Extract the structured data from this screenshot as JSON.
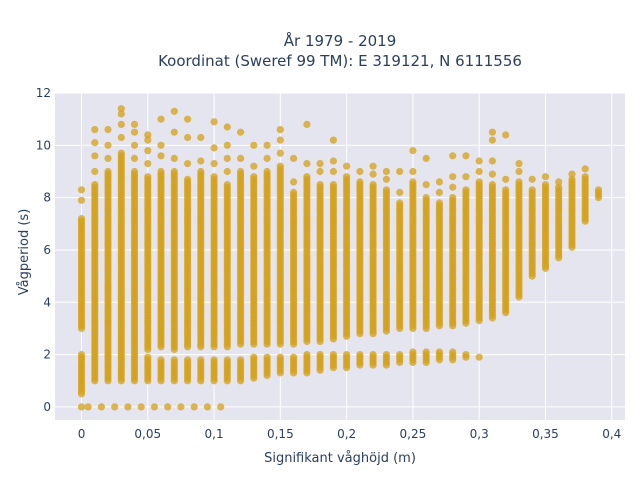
{
  "chart_data": {
    "type": "scatter",
    "title_line1": "År 1979 - 2019",
    "title_line2": "Koordinat (Sweref 99 TM): E 319121, N 6111556",
    "xlabel": "Signifikant våghöjd (m)",
    "ylabel": "Vågperiod (s)",
    "xlim": [
      -0.02,
      0.41
    ],
    "ylim": [
      -0.5,
      12
    ],
    "xticks": [
      0,
      0.05,
      0.1,
      0.15,
      0.2,
      0.25,
      0.3,
      0.35,
      0.4
    ],
    "xtick_labels": [
      "0",
      "0,05",
      "0,1",
      "0,15",
      "0,2",
      "0,25",
      "0,3",
      "0,35",
      "0,4"
    ],
    "yticks": [
      0,
      2,
      4,
      6,
      8,
      10,
      12
    ],
    "ytick_labels": [
      "0",
      "2",
      "4",
      "6",
      "8",
      "10",
      "12"
    ],
    "marker_color": "#D4A017",
    "plot_background": "#E5E5EF",
    "grid": true,
    "legend": false,
    "columns": [
      {
        "x": 0.0,
        "segments": [
          [
            0,
            0
          ],
          [
            0.5,
            2.0
          ],
          [
            3.0,
            7.2
          ]
        ],
        "outliers": [
          7.9,
          8.3
        ]
      },
      {
        "x": 0.005,
        "segments": [
          [
            0,
            0
          ]
        ]
      },
      {
        "x": 0.01,
        "segments": [
          [
            1.0,
            8.5
          ]
        ],
        "outliers": [
          9.0,
          9.6,
          10.1,
          10.6
        ]
      },
      {
        "x": 0.015,
        "segments": [
          [
            0,
            0
          ]
        ]
      },
      {
        "x": 0.02,
        "segments": [
          [
            1.0,
            9.0
          ]
        ],
        "outliers": [
          9.5,
          10.0,
          10.6
        ]
      },
      {
        "x": 0.025,
        "segments": [
          [
            0,
            0
          ]
        ]
      },
      {
        "x": 0.03,
        "segments": [
          [
            1.0,
            9.7
          ]
        ],
        "outliers": [
          10.3,
          10.8,
          11.2,
          11.4
        ]
      },
      {
        "x": 0.035,
        "segments": [
          [
            0,
            0
          ]
        ]
      },
      {
        "x": 0.04,
        "segments": [
          [
            1.0,
            9.0
          ]
        ],
        "outliers": [
          9.5,
          10.0,
          10.5,
          10.8
        ]
      },
      {
        "x": 0.045,
        "segments": [
          [
            0,
            0
          ]
        ]
      },
      {
        "x": 0.05,
        "segments": [
          [
            1.0,
            1.9
          ],
          [
            2.2,
            8.8
          ]
        ],
        "outliers": [
          9.3,
          9.8,
          10.2,
          10.4
        ]
      },
      {
        "x": 0.055,
        "segments": [
          [
            0,
            0
          ]
        ]
      },
      {
        "x": 0.06,
        "segments": [
          [
            1.0,
            1.8
          ],
          [
            2.3,
            9.0
          ]
        ],
        "outliers": [
          9.6,
          10.0,
          11.0
        ]
      },
      {
        "x": 0.065,
        "segments": [
          [
            0,
            0
          ]
        ]
      },
      {
        "x": 0.07,
        "segments": [
          [
            1.0,
            1.8
          ],
          [
            2.2,
            9.0
          ]
        ],
        "outliers": [
          9.5,
          10.5,
          11.3
        ]
      },
      {
        "x": 0.075,
        "segments": [
          [
            0,
            0
          ]
        ]
      },
      {
        "x": 0.08,
        "segments": [
          [
            1.0,
            1.8
          ],
          [
            2.3,
            8.7
          ]
        ],
        "outliers": [
          9.3,
          10.3,
          11.0
        ]
      },
      {
        "x": 0.085,
        "segments": [
          [
            0,
            0
          ]
        ]
      },
      {
        "x": 0.09,
        "segments": [
          [
            1.0,
            1.8
          ],
          [
            2.3,
            9.0
          ]
        ],
        "outliers": [
          9.4,
          10.3
        ]
      },
      {
        "x": 0.095,
        "segments": [
          [
            0,
            0
          ]
        ]
      },
      {
        "x": 0.1,
        "segments": [
          [
            1.0,
            1.8
          ],
          [
            2.3,
            8.8
          ]
        ],
        "outliers": [
          9.3,
          9.9,
          10.9
        ]
      },
      {
        "x": 0.105,
        "segments": [
          [
            0,
            0
          ]
        ]
      },
      {
        "x": 0.11,
        "segments": [
          [
            1.0,
            1.8
          ],
          [
            2.3,
            8.5
          ]
        ],
        "outliers": [
          9.0,
          9.5,
          10.0,
          10.7
        ]
      },
      {
        "x": 0.12,
        "segments": [
          [
            1.0,
            1.8
          ],
          [
            2.4,
            9.0
          ]
        ],
        "outliers": [
          9.5,
          10.5
        ]
      },
      {
        "x": 0.13,
        "segments": [
          [
            1.1,
            1.9
          ],
          [
            2.4,
            8.8
          ]
        ],
        "outliers": [
          9.2,
          10.0
        ]
      },
      {
        "x": 0.14,
        "segments": [
          [
            1.2,
            1.9
          ],
          [
            2.4,
            9.0
          ]
        ],
        "outliers": [
          9.5,
          10.0
        ]
      },
      {
        "x": 0.15,
        "segments": [
          [
            1.3,
            1.9
          ],
          [
            2.4,
            9.2
          ]
        ],
        "outliers": [
          9.7,
          10.2,
          10.6
        ]
      },
      {
        "x": 0.16,
        "segments": [
          [
            1.3,
            1.9
          ],
          [
            2.4,
            8.2
          ]
        ],
        "outliers": [
          8.6,
          9.5
        ]
      },
      {
        "x": 0.17,
        "segments": [
          [
            1.3,
            2.0
          ],
          [
            2.5,
            8.8
          ]
        ],
        "outliers": [
          9.3,
          10.8
        ]
      },
      {
        "x": 0.18,
        "segments": [
          [
            1.4,
            2.0
          ],
          [
            2.5,
            8.5
          ]
        ],
        "outliers": [
          9.0,
          9.3
        ]
      },
      {
        "x": 0.19,
        "segments": [
          [
            1.5,
            2.0
          ],
          [
            2.6,
            8.5
          ]
        ],
        "outliers": [
          9.0,
          9.4,
          10.2
        ]
      },
      {
        "x": 0.2,
        "segments": [
          [
            1.5,
            2.0
          ],
          [
            2.7,
            8.8
          ]
        ],
        "outliers": [
          9.2
        ]
      },
      {
        "x": 0.21,
        "segments": [
          [
            1.6,
            2.0
          ],
          [
            2.8,
            8.6
          ]
        ],
        "outliers": [
          9.0
        ]
      },
      {
        "x": 0.22,
        "segments": [
          [
            1.6,
            2.0
          ],
          [
            2.8,
            8.5
          ]
        ],
        "outliers": [
          8.9,
          9.2
        ]
      },
      {
        "x": 0.23,
        "segments": [
          [
            1.6,
            2.0
          ],
          [
            2.9,
            8.3
          ]
        ],
        "outliers": [
          8.7,
          9.0
        ]
      },
      {
        "x": 0.24,
        "segments": [
          [
            1.7,
            2.0
          ],
          [
            3.0,
            7.8
          ]
        ],
        "outliers": [
          8.2,
          9.0
        ]
      },
      {
        "x": 0.25,
        "segments": [
          [
            1.7,
            2.1
          ],
          [
            3.0,
            8.6
          ]
        ],
        "outliers": [
          9.0,
          9.8
        ]
      },
      {
        "x": 0.26,
        "segments": [
          [
            1.7,
            2.1
          ],
          [
            3.0,
            8.0
          ]
        ],
        "outliers": [
          8.5,
          9.5
        ]
      },
      {
        "x": 0.27,
        "segments": [
          [
            1.8,
            2.1
          ],
          [
            3.1,
            7.8
          ]
        ],
        "outliers": [
          8.2,
          8.6
        ]
      },
      {
        "x": 0.28,
        "segments": [
          [
            1.8,
            2.1
          ],
          [
            3.1,
            8.0
          ]
        ],
        "outliers": [
          8.4,
          8.8,
          9.6
        ]
      },
      {
        "x": 0.29,
        "segments": [
          [
            1.9,
            2.0
          ],
          [
            3.2,
            8.3
          ]
        ],
        "outliers": [
          8.8,
          9.6
        ]
      },
      {
        "x": 0.3,
        "segments": [
          [
            3.3,
            8.6
          ]
        ],
        "outliers": [
          1.9,
          9.0,
          9.4
        ]
      },
      {
        "x": 0.31,
        "segments": [
          [
            3.4,
            8.5
          ]
        ],
        "outliers": [
          8.9,
          9.4,
          10.2,
          10.5
        ]
      },
      {
        "x": 0.32,
        "segments": [
          [
            3.6,
            8.3
          ]
        ],
        "outliers": [
          8.7,
          10.4
        ]
      },
      {
        "x": 0.33,
        "segments": [
          [
            4.2,
            8.6
          ]
        ],
        "outliers": [
          9.0,
          9.3
        ]
      },
      {
        "x": 0.34,
        "segments": [
          [
            5.0,
            8.3
          ]
        ],
        "outliers": [
          8.7
        ]
      },
      {
        "x": 0.35,
        "segments": [
          [
            5.3,
            8.5
          ]
        ],
        "outliers": [
          8.8
        ]
      },
      {
        "x": 0.36,
        "segments": [
          [
            5.7,
            8.4
          ]
        ],
        "outliers": [
          8.6
        ]
      },
      {
        "x": 0.37,
        "segments": [
          [
            6.1,
            8.7
          ]
        ],
        "outliers": [
          8.9
        ]
      },
      {
        "x": 0.38,
        "segments": [
          [
            7.1,
            8.8
          ]
        ],
        "outliers": [
          9.1
        ]
      },
      {
        "x": 0.39,
        "segments": [
          [
            8.0,
            8.3
          ]
        ]
      }
    ]
  }
}
